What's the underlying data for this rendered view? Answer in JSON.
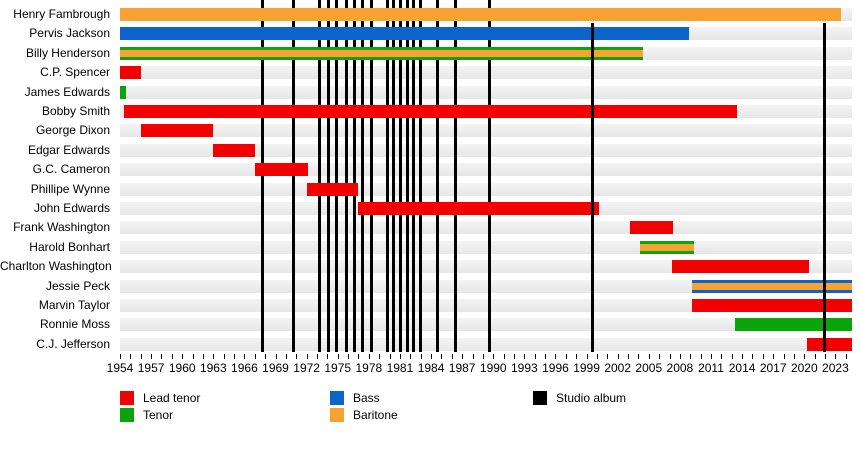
{
  "chart_data": {
    "type": "gantt",
    "x_axis": {
      "start": 1954,
      "end_edge": 2024.6,
      "tick_start": 1954,
      "tick_end": 2024,
      "tick_step": 1,
      "label_step": 3,
      "labels": [
        "1954",
        "1957",
        "1960",
        "1963",
        "1966",
        "1969",
        "1972",
        "1975",
        "1978",
        "1981",
        "1984",
        "1987",
        "1990",
        "1993",
        "1996",
        "1999",
        "2002",
        "2005",
        "2008",
        "2011",
        "2014",
        "2017",
        "2020",
        "2023"
      ]
    },
    "members": [
      {
        "name": "Henry Fambrough",
        "roles": [
          "baritone"
        ],
        "from": 1954,
        "till": 2023.5
      },
      {
        "name": "Pervis Jackson",
        "roles": [
          "bass"
        ],
        "from": 1954,
        "till": 2008.9
      },
      {
        "name": "Billy Henderson",
        "roles": [
          "tenor",
          "baritone"
        ],
        "from": 1954,
        "till": 2004.4
      },
      {
        "name": "C.P. Spencer",
        "roles": [
          "lead"
        ],
        "from": 1954,
        "till": 1956
      },
      {
        "name": "James Edwards",
        "roles": [
          "tenor"
        ],
        "from": 1954,
        "till": 1954.6
      },
      {
        "name": "Bobby Smith",
        "roles": [
          "lead"
        ],
        "from": 1954.4,
        "till": 2013.5
      },
      {
        "name": "George Dixon",
        "roles": [
          "lead"
        ],
        "from": 1956,
        "till": 1963
      },
      {
        "name": "Edgar Edwards",
        "roles": [
          "lead"
        ],
        "from": 1963,
        "till": 1967
      },
      {
        "name": "G.C. Cameron",
        "roles": [
          "lead"
        ],
        "from": 1967,
        "till": 1972.1
      },
      {
        "name": "Phillipe Wynne",
        "roles": [
          "lead"
        ],
        "from": 1972,
        "till": 1977
      },
      {
        "name": "John Edwards",
        "roles": [
          "lead"
        ],
        "from": 1977,
        "till": 2000.2
      },
      {
        "name": "Frank Washington",
        "roles": [
          "lead"
        ],
        "from": 2003.2,
        "till": 2007.3
      },
      {
        "name": "Harold Bonhart",
        "roles": [
          "tenor",
          "baritone"
        ],
        "from": 2004.2,
        "till": 2009.4
      },
      {
        "name": "Charlton Washington",
        "roles": [
          "lead"
        ],
        "from": 2007.2,
        "till": 2020.5
      },
      {
        "name": "Jessie Peck",
        "roles": [
          "bass",
          "baritone"
        ],
        "from": 2009.2,
        "till": 2024.6
      },
      {
        "name": "Marvin Taylor",
        "roles": [
          "lead"
        ],
        "from": 2009.2,
        "till": 2024.6
      },
      {
        "name": "Ronnie Moss",
        "roles": [
          "tenor"
        ],
        "from": 2013.3,
        "till": 2024.6
      },
      {
        "name": "C.J. Jefferson",
        "roles": [
          "lead"
        ],
        "from": 2020.3,
        "till": 2024.6
      }
    ],
    "albums": [
      {
        "year": 1967.7
      },
      {
        "year": 1970.7
      },
      {
        "year": 1973.2
      },
      {
        "year": 1974.1
      },
      {
        "year": 1974.9
      },
      {
        "year": 1975.8
      },
      {
        "year": 1976.6
      },
      {
        "year": 1977.4
      },
      {
        "year": 1978.3
      },
      {
        "year": 1979.8
      },
      {
        "year": 1980.4
      },
      {
        "year": 1981.1
      },
      {
        "year": 1981.7
      },
      {
        "year": 1982.3
      },
      {
        "year": 1983.0
      },
      {
        "year": 1984.6
      },
      {
        "year": 1986.4
      },
      {
        "year": 1989.6
      },
      {
        "year": 1999.6,
        "front": true,
        "start_row": 1
      },
      {
        "year": 2021.9,
        "front": true,
        "start_row": 1
      }
    ],
    "colors": {
      "lead": "#f30000",
      "tenor": "#0ba50b",
      "bass": "#0d64c8",
      "baritone": "#f8a331",
      "album": "#000000"
    },
    "legend": {
      "items": [
        {
          "label": "Lead tenor",
          "color_key": "lead"
        },
        {
          "label": "Tenor",
          "color_key": "tenor"
        },
        {
          "label": "Bass",
          "color_key": "bass"
        },
        {
          "label": "Baritone",
          "color_key": "baritone"
        },
        {
          "label": "Studio album",
          "color_key": "album"
        }
      ]
    }
  }
}
